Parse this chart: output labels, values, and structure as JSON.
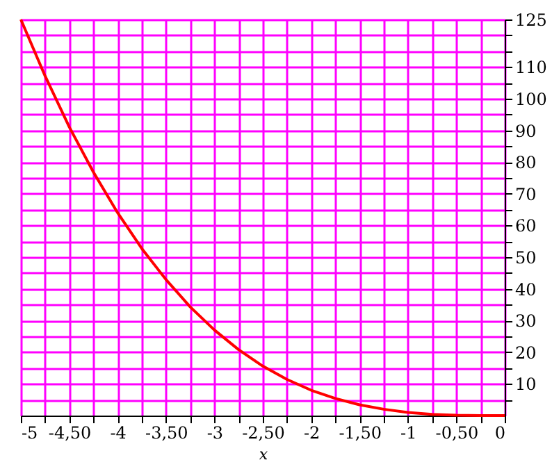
{
  "chart_data": {
    "type": "line",
    "xlabel": "x",
    "x": [
      -5,
      -4.75,
      -4.5,
      -4.25,
      -4,
      -3.75,
      -3.5,
      -3.25,
      -3,
      -2.75,
      -2.5,
      -2.25,
      -2,
      -1.75,
      -1.5,
      -1.25,
      -1,
      -0.75,
      -0.5,
      -0.25,
      0
    ],
    "series": [
      {
        "color": "#ff0000",
        "values": [
          125,
          107.2,
          91.1,
          76.8,
          64,
          52.7,
          42.9,
          34.3,
          27,
          20.8,
          15.6,
          11.4,
          8,
          5.4,
          3.4,
          2,
          1,
          0.4,
          0.1,
          0,
          0
        ]
      }
    ],
    "xlim": [
      -5,
      0
    ],
    "ylim": [
      0,
      125
    ],
    "xticks": [
      {
        "value": -5,
        "label": "-5"
      },
      {
        "value": -4.75,
        "label": null
      },
      {
        "value": -4.5,
        "label": "-4,50"
      },
      {
        "value": -4.25,
        "label": null
      },
      {
        "value": -4,
        "label": "-4"
      },
      {
        "value": -3.75,
        "label": null
      },
      {
        "value": -3.5,
        "label": "-3,50"
      },
      {
        "value": -3.25,
        "label": null
      },
      {
        "value": -3,
        "label": "-3"
      },
      {
        "value": -2.75,
        "label": null
      },
      {
        "value": -2.5,
        "label": "-2,50"
      },
      {
        "value": -2.25,
        "label": null
      },
      {
        "value": -2,
        "label": "-2"
      },
      {
        "value": -1.75,
        "label": null
      },
      {
        "value": -1.5,
        "label": "-1,50"
      },
      {
        "value": -1.25,
        "label": null
      },
      {
        "value": -1,
        "label": "-1"
      },
      {
        "value": -0.75,
        "label": null
      },
      {
        "value": -0.5,
        "label": "-0,50"
      },
      {
        "value": -0.25,
        "label": null
      },
      0
    ],
    "yticks": [
      {
        "value": 5,
        "label": null
      },
      10,
      {
        "value": 15,
        "label": null
      },
      20,
      {
        "value": 25,
        "label": null
      },
      30,
      {
        "value": 35,
        "label": null
      },
      40,
      {
        "value": 45,
        "label": null
      },
      50,
      {
        "value": 55,
        "label": null
      },
      60,
      {
        "value": 65,
        "label": null
      },
      70,
      {
        "value": 75,
        "label": null
      },
      80,
      {
        "value": 85,
        "label": null
      },
      90,
      {
        "value": 95,
        "label": null
      },
      100,
      {
        "value": 105,
        "label": null
      },
      110,
      {
        "value": 115,
        "label": null
      },
      {
        "value": 120,
        "label": null
      },
      125
    ],
    "grid": true,
    "line_style": "solid",
    "marker": "none"
  }
}
